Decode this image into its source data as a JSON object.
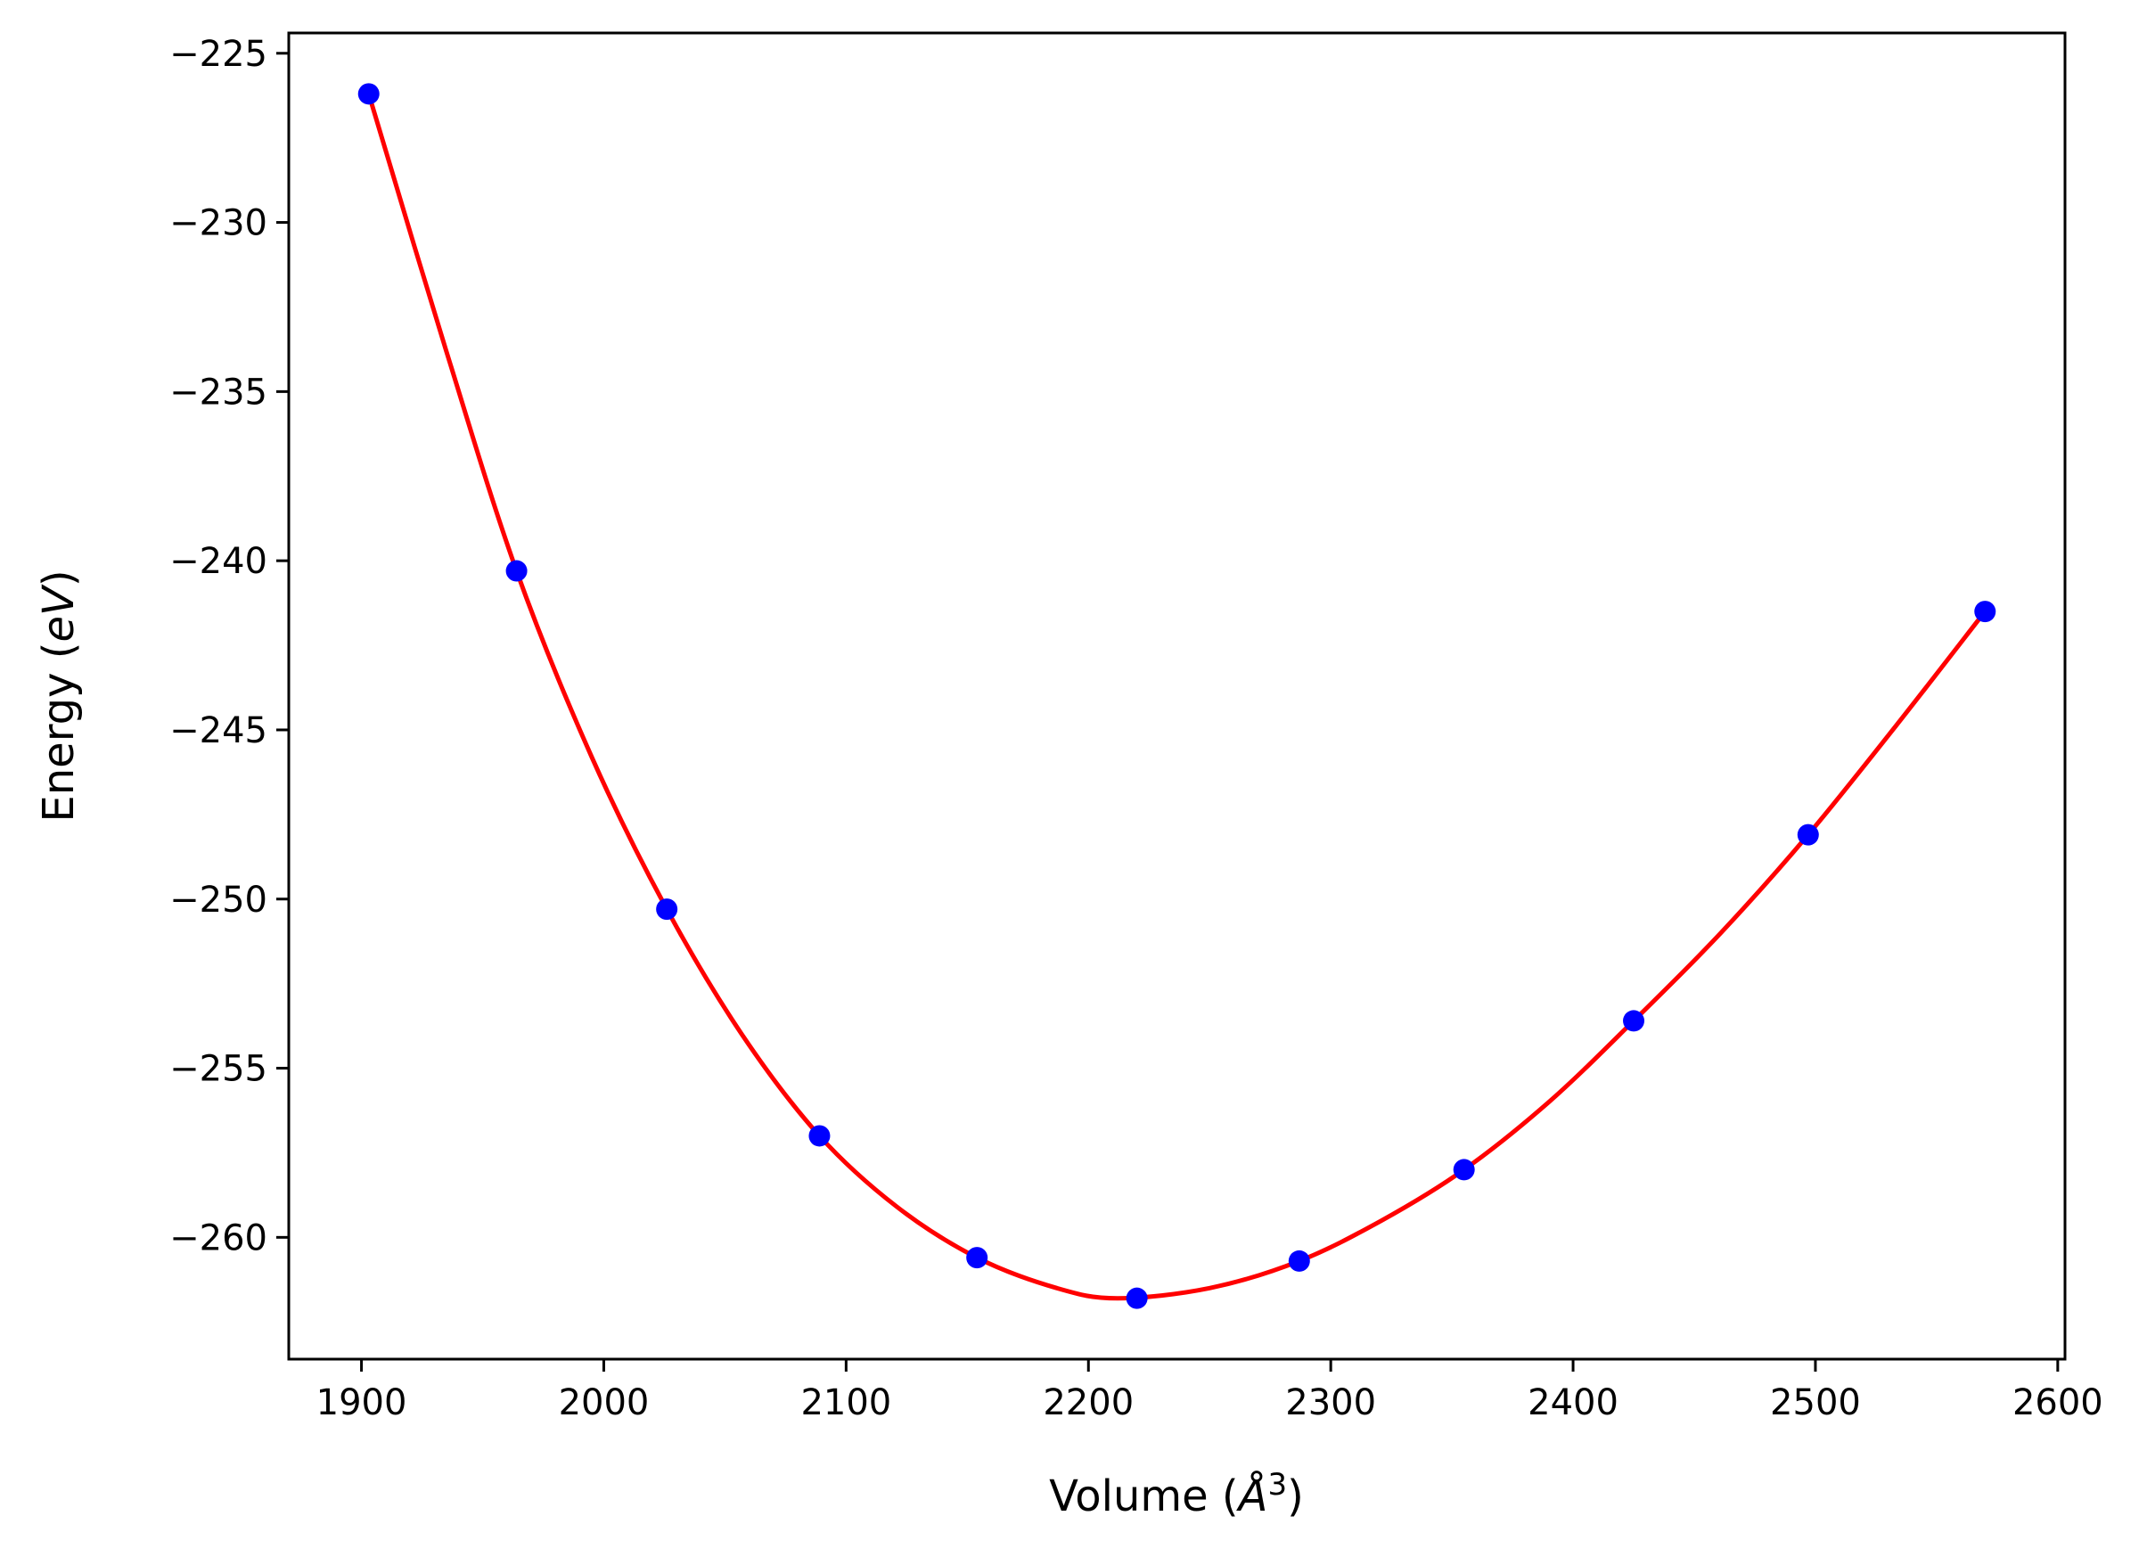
{
  "chart_data": {
    "type": "scatter",
    "xlabel": {
      "prefix": "Volume (",
      "unit": "Å",
      "exp": "3",
      "suffix": ")"
    },
    "ylabel": {
      "prefix": "Energy (",
      "unit": "eV",
      "suffix": ")"
    },
    "xlim": [
      1870,
      2603
    ],
    "ylim": [
      -263.6,
      -224.4
    ],
    "xticks": [
      1900,
      2000,
      2100,
      2200,
      2300,
      2400,
      2500,
      2600
    ],
    "xtick_labels": [
      "1900",
      "2000",
      "2100",
      "2200",
      "2300",
      "2400",
      "2500",
      "2600"
    ],
    "yticks": [
      -225,
      -230,
      -235,
      -240,
      -245,
      -250,
      -255,
      -260
    ],
    "ytick_labels": [
      "−225",
      "−230",
      "−235",
      "−240",
      "−245",
      "−250",
      "−255",
      "−260"
    ],
    "grid": false,
    "series": [
      {
        "kind": "points",
        "color": "#0000ff",
        "x": [
          1903,
          1964,
          2026,
          2089,
          2154,
          2220,
          2287,
          2355,
          2425,
          2497,
          2570
        ],
        "y": [
          -226.2,
          -240.3,
          -250.3,
          -257.0,
          -260.6,
          -261.8,
          -260.7,
          -258.0,
          -253.6,
          -248.1,
          -241.5
        ]
      },
      {
        "kind": "curve",
        "color": "#ff0000",
        "x": [
          1903,
          1935,
          1964,
          1995,
          2026,
          2057,
          2089,
          2121,
          2154,
          2187,
          2212,
          2250,
          2287,
          2321,
          2355,
          2390,
          2425,
          2461,
          2497,
          2533,
          2570
        ],
        "y": [
          -226.2,
          -233.8,
          -240.3,
          -245.8,
          -250.3,
          -254.0,
          -257.0,
          -259.1,
          -260.6,
          -261.5,
          -261.8,
          -261.5,
          -260.7,
          -259.5,
          -258.0,
          -256.0,
          -253.6,
          -251.0,
          -248.1,
          -244.9,
          -241.5
        ]
      }
    ]
  }
}
